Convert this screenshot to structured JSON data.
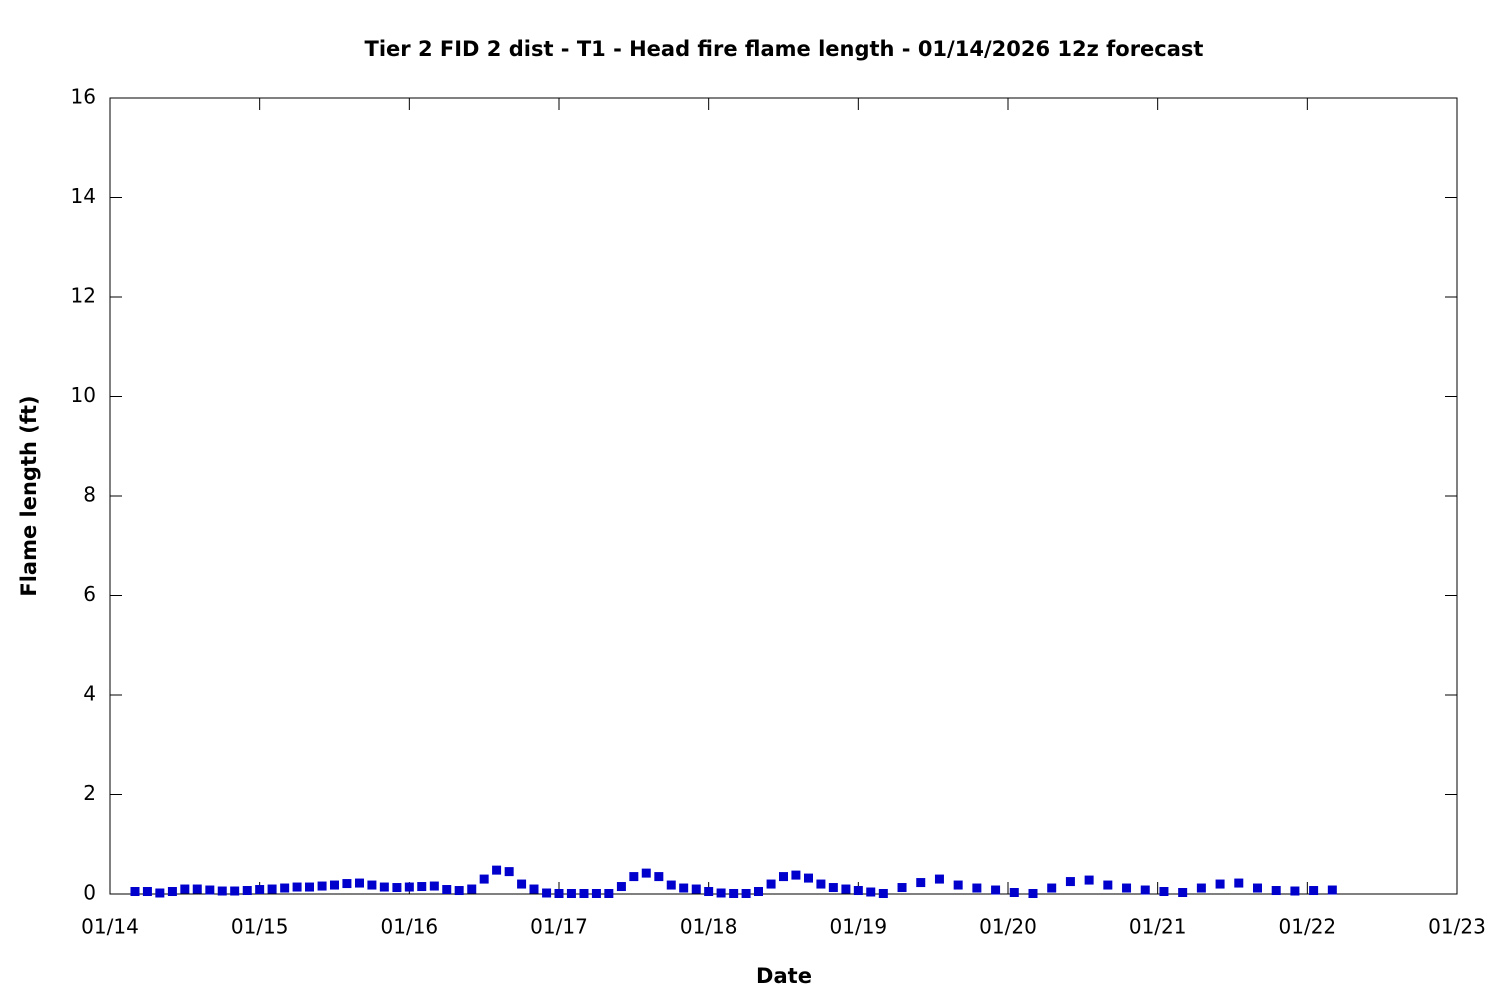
{
  "chart_data": {
    "type": "scatter",
    "title": "Tier 2 FID 2 dist - T1 - Head fire flame length - 01/14/2026 12z forecast",
    "x_label": "Date",
    "y_label": "Flame length (ft)",
    "color": "#0000cc",
    "x": [
      14.167,
      14.25,
      14.333,
      14.417,
      14.5,
      14.583,
      14.667,
      14.75,
      14.833,
      14.917,
      15,
      15.083,
      15.167,
      15.25,
      15.333,
      15.417,
      15.5,
      15.583,
      15.667,
      15.75,
      15.833,
      15.917,
      16,
      16.083,
      16.167,
      16.25,
      16.333,
      16.417,
      16.5,
      16.583,
      16.667,
      16.75,
      16.833,
      16.917,
      17,
      17.083,
      17.167,
      17.25,
      17.333,
      17.417,
      17.5,
      17.583,
      17.667,
      17.75,
      17.833,
      17.917,
      18,
      18.083,
      18.167,
      18.25,
      18.333,
      18.417,
      18.5,
      18.583,
      18.667,
      18.75,
      18.833,
      18.917,
      19,
      19.083,
      19.167,
      19.292,
      19.417,
      19.542,
      19.667,
      19.792,
      19.917,
      20.042,
      20.167,
      20.292,
      20.417,
      20.542,
      20.667,
      20.792,
      20.917,
      21.042,
      21.167,
      21.292,
      21.417,
      21.542,
      21.667,
      21.792,
      21.917,
      22.042,
      22.167
    ],
    "values": [
      0.05,
      0.05,
      0.02,
      0.05,
      0.1,
      0.1,
      0.08,
      0.06,
      0.06,
      0.07,
      0.09,
      0.1,
      0.12,
      0.14,
      0.14,
      0.16,
      0.18,
      0.21,
      0.22,
      0.18,
      0.14,
      0.13,
      0.14,
      0.15,
      0.16,
      0.09,
      0.07,
      0.1,
      0.3,
      0.48,
      0.45,
      0.2,
      0.1,
      0.02,
      0.01,
      0.01,
      0.01,
      0.01,
      0.01,
      0.15,
      0.35,
      0.42,
      0.35,
      0.18,
      0.12,
      0.1,
      0.05,
      0.02,
      0.01,
      0.01,
      0.05,
      0.2,
      0.35,
      0.38,
      0.32,
      0.2,
      0.13,
      0.1,
      0.07,
      0.04,
      0.01,
      0.13,
      0.23,
      0.3,
      0.18,
      0.12,
      0.08,
      0.03,
      0.01,
      0.12,
      0.25,
      0.28,
      0.18,
      0.12,
      0.08,
      0.05,
      0.03,
      0.12,
      0.2,
      0.22,
      0.12,
      0.07,
      0.06,
      0.07,
      0.08
    ],
    "xlim": [
      14,
      23
    ],
    "xticks": [
      {
        "value": 14,
        "label": "01/14"
      },
      {
        "value": 15,
        "label": "01/15"
      },
      {
        "value": 16,
        "label": "01/16"
      },
      {
        "value": 17,
        "label": "01/17"
      },
      {
        "value": 18,
        "label": "01/18"
      },
      {
        "value": 19,
        "label": "01/19"
      },
      {
        "value": 20,
        "label": "01/20"
      },
      {
        "value": 21,
        "label": "01/21"
      },
      {
        "value": 22,
        "label": "01/22"
      },
      {
        "value": 23,
        "label": "01/23"
      }
    ],
    "ylim": [
      0,
      16
    ],
    "yticks": [
      0,
      2,
      4,
      6,
      8,
      10,
      12,
      14,
      16
    ],
    "grid": false
  }
}
